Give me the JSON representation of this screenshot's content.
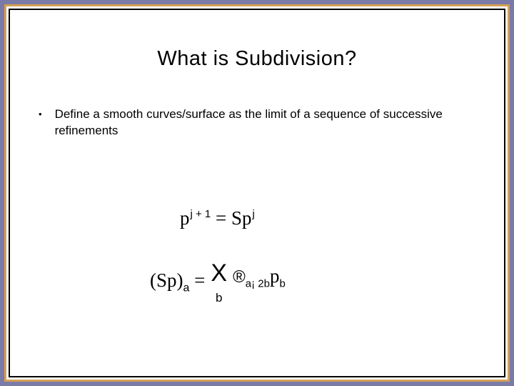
{
  "colors": {
    "outer_background": "#7a7aa8",
    "outer_border": "#d4a054",
    "inner_border": "#000000",
    "content_background": "#ffffff",
    "text": "#000000"
  },
  "typography": {
    "title_fontsize_pt": 29,
    "body_fontsize_pt": 17,
    "equation_fontsize_pt": 27,
    "title_family": "Helvetica/Arial",
    "equation_family": "Georgia/serif"
  },
  "title": "What is Subdivision?",
  "bullet": {
    "marker": "•",
    "text": "Define a smooth curves/surface as the limit of a sequence of successive refinements"
  },
  "equation1": {
    "base1": "p",
    "sup1": "j + 1",
    "eq": " = ",
    "rhs_coef": "S",
    "base2": "p",
    "sup2": "j",
    "rendered": "p^{j+1} = S p^{j}"
  },
  "equation2": {
    "lhs_open": "(Sp)",
    "lhs_sub": "a",
    "eq": " = ",
    "sum_symbol": "X",
    "sum_lower": "b",
    "rhs_sym": "®",
    "rhs_sub1": "a¡ 2b",
    "rhs_base": "p",
    "rhs_sub2": "b",
    "rendered": "(Sp)_a = Σ_b ®_{a¡2b} p_b"
  }
}
